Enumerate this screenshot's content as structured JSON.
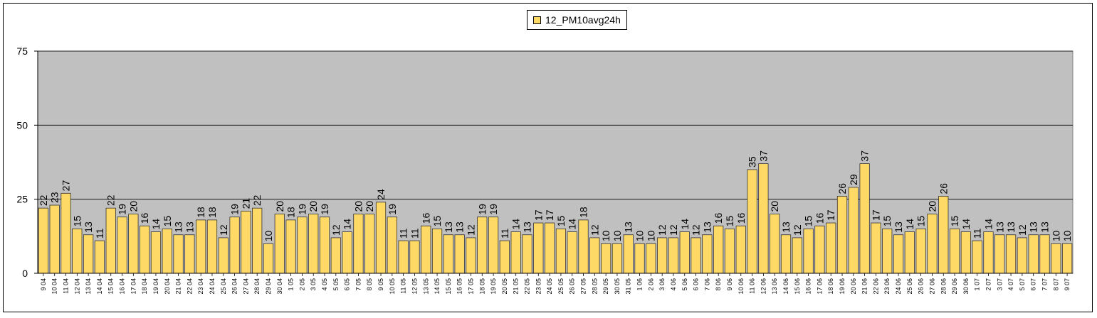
{
  "chart_data": {
    "type": "bar",
    "title": "",
    "xlabel": "",
    "ylabel": "",
    "ylim": [
      0,
      75
    ],
    "yticks": [
      0,
      25,
      50,
      75
    ],
    "grid": true,
    "legend_position": "top-center",
    "colors": {
      "bar_fill": "#FFD966",
      "bar_stroke": "#333333",
      "plot_bg": "#C0C0C0",
      "gridline": "#000000"
    },
    "categories": [
      "9 04",
      "10 04",
      "11 04",
      "12 04",
      "13 04",
      "14 04",
      "15 04",
      "16 04",
      "17 04",
      "18 04",
      "19 04",
      "20 04",
      "21 04",
      "22 04",
      "23 04",
      "24 04",
      "25 04",
      "26 04",
      "27 04",
      "28 04",
      "29 04",
      "30 04",
      "1 05",
      "2 05",
      "3 05",
      "4 05",
      "5 05",
      "6 05",
      "7 05",
      "8 05",
      "9 05",
      "10 05",
      "11 05",
      "12 05",
      "13 05",
      "14 05",
      "15 05",
      "16 05",
      "17 05",
      "18 05",
      "19 05",
      "20 05",
      "21 05",
      "22 05",
      "23 05",
      "24 05",
      "25 05",
      "26 05",
      "27 05",
      "28 05",
      "29 05",
      "30 05",
      "31 05",
      "1 06",
      "2 06",
      "3 06",
      "4 06",
      "5 06",
      "6 06",
      "7 06",
      "8 06",
      "9 06",
      "10 06",
      "11 06",
      "12 06",
      "13 06",
      "14 06",
      "15 06",
      "16 06",
      "17 06",
      "18 06",
      "19 06",
      "20 06",
      "21 06",
      "22 06",
      "23 06",
      "24 06",
      "25 06",
      "26 06",
      "27 06",
      "28 06",
      "29 06",
      "30 06",
      "1 07",
      "2 07",
      "3 07",
      "4 07",
      "5 07",
      "6 07",
      "7 07",
      "8 07",
      "9 07"
    ],
    "series": [
      {
        "name": "12_PM10avg24h",
        "values": [
          22,
          23,
          27,
          15,
          13,
          11,
          22,
          19,
          20,
          16,
          14,
          15,
          13,
          13,
          18,
          18,
          12,
          19,
          21,
          22,
          10,
          20,
          18,
          19,
          20,
          19,
          12,
          14,
          20,
          20,
          24,
          19,
          11,
          11,
          16,
          15,
          13,
          13,
          12,
          19,
          19,
          11,
          14,
          13,
          17,
          17,
          15,
          14,
          18,
          12,
          10,
          10,
          13,
          10,
          10,
          12,
          12,
          14,
          12,
          13,
          16,
          15,
          16,
          35,
          37,
          20,
          13,
          12,
          15,
          16,
          17,
          26,
          29,
          37,
          17,
          15,
          13,
          14,
          15,
          20,
          26,
          15,
          14,
          11,
          14,
          13,
          13,
          12,
          13,
          13,
          10,
          10
        ]
      }
    ]
  }
}
